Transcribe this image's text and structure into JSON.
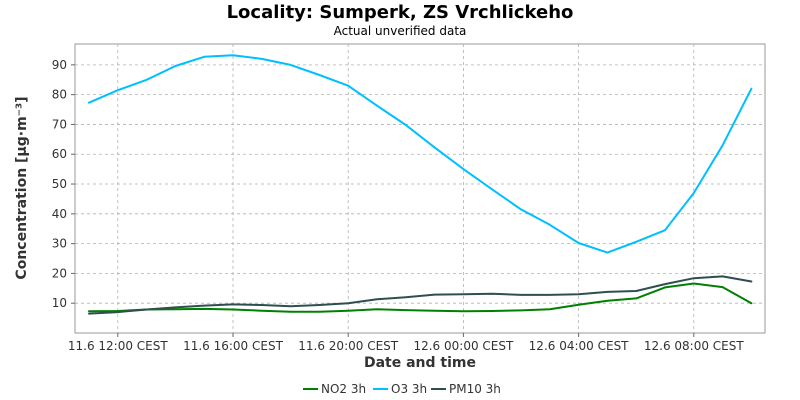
{
  "chart_data": {
    "type": "line",
    "title": "Locality: Sumperk, ZS Vrchlickeho",
    "subtitle": "Actual unverified data",
    "xlabel": "Date and time",
    "ylabel": "Concentration [µg·m⁻³]",
    "ylim": [
      0,
      97
    ],
    "yticks": [
      10,
      20,
      30,
      40,
      50,
      60,
      70,
      80,
      90
    ],
    "x": [
      "11.6 11:00",
      "11.6 12:00",
      "11.6 13:00",
      "11.6 14:00",
      "11.6 15:00",
      "11.6 16:00",
      "11.6 17:00",
      "11.6 18:00",
      "11.6 19:00",
      "11.6 20:00",
      "11.6 21:00",
      "11.6 22:00",
      "11.6 23:00",
      "12.6 00:00",
      "12.6 01:00",
      "12.6 02:00",
      "12.6 03:00",
      "12.6 04:00",
      "12.6 05:00",
      "12.6 06:00",
      "12.6 07:00",
      "12.6 08:00",
      "12.6 09:00",
      "12.6 10:00"
    ],
    "xticks": [
      {
        "index": 1,
        "label": "11.6 12:00 CEST"
      },
      {
        "index": 5,
        "label": "11.6 16:00 CEST"
      },
      {
        "index": 9,
        "label": "11.6 20:00 CEST"
      },
      {
        "index": 13,
        "label": "12.6 00:00 CEST"
      },
      {
        "index": 17,
        "label": "12.6 04:00 CEST"
      },
      {
        "index": 21,
        "label": "12.6 08:00 CEST"
      }
    ],
    "grid": true,
    "legend_position": "bottom",
    "series": [
      {
        "name": "NO2 3h",
        "color": "#008000",
        "values": [
          7.3,
          7.4,
          7.9,
          8.0,
          8.1,
          7.9,
          7.5,
          7.1,
          7.1,
          7.5,
          8.0,
          7.7,
          7.5,
          7.3,
          7.4,
          7.6,
          8.0,
          9.5,
          10.8,
          11.6,
          15.3,
          16.6,
          15.4,
          10.0
        ]
      },
      {
        "name": "O3 3h",
        "color": "#00BFFF",
        "values": [
          77.3,
          81.5,
          85.0,
          89.6,
          92.7,
          93.2,
          92.0,
          90.0,
          86.6,
          83.0,
          76.3,
          69.8,
          62.3,
          55.0,
          48.2,
          41.5,
          36.3,
          30.2,
          27.0,
          30.6,
          34.5,
          47.0,
          63.0,
          82.0
        ]
      },
      {
        "name": "PM10 3h",
        "color": "#2F4F4F",
        "values": [
          6.5,
          7.0,
          7.9,
          8.6,
          9.2,
          9.6,
          9.4,
          9.0,
          9.4,
          10.0,
          11.3,
          12.0,
          12.9,
          13.0,
          13.2,
          12.8,
          12.8,
          13.0,
          13.8,
          14.1,
          16.4,
          18.4,
          19.0,
          17.3
        ]
      }
    ]
  }
}
